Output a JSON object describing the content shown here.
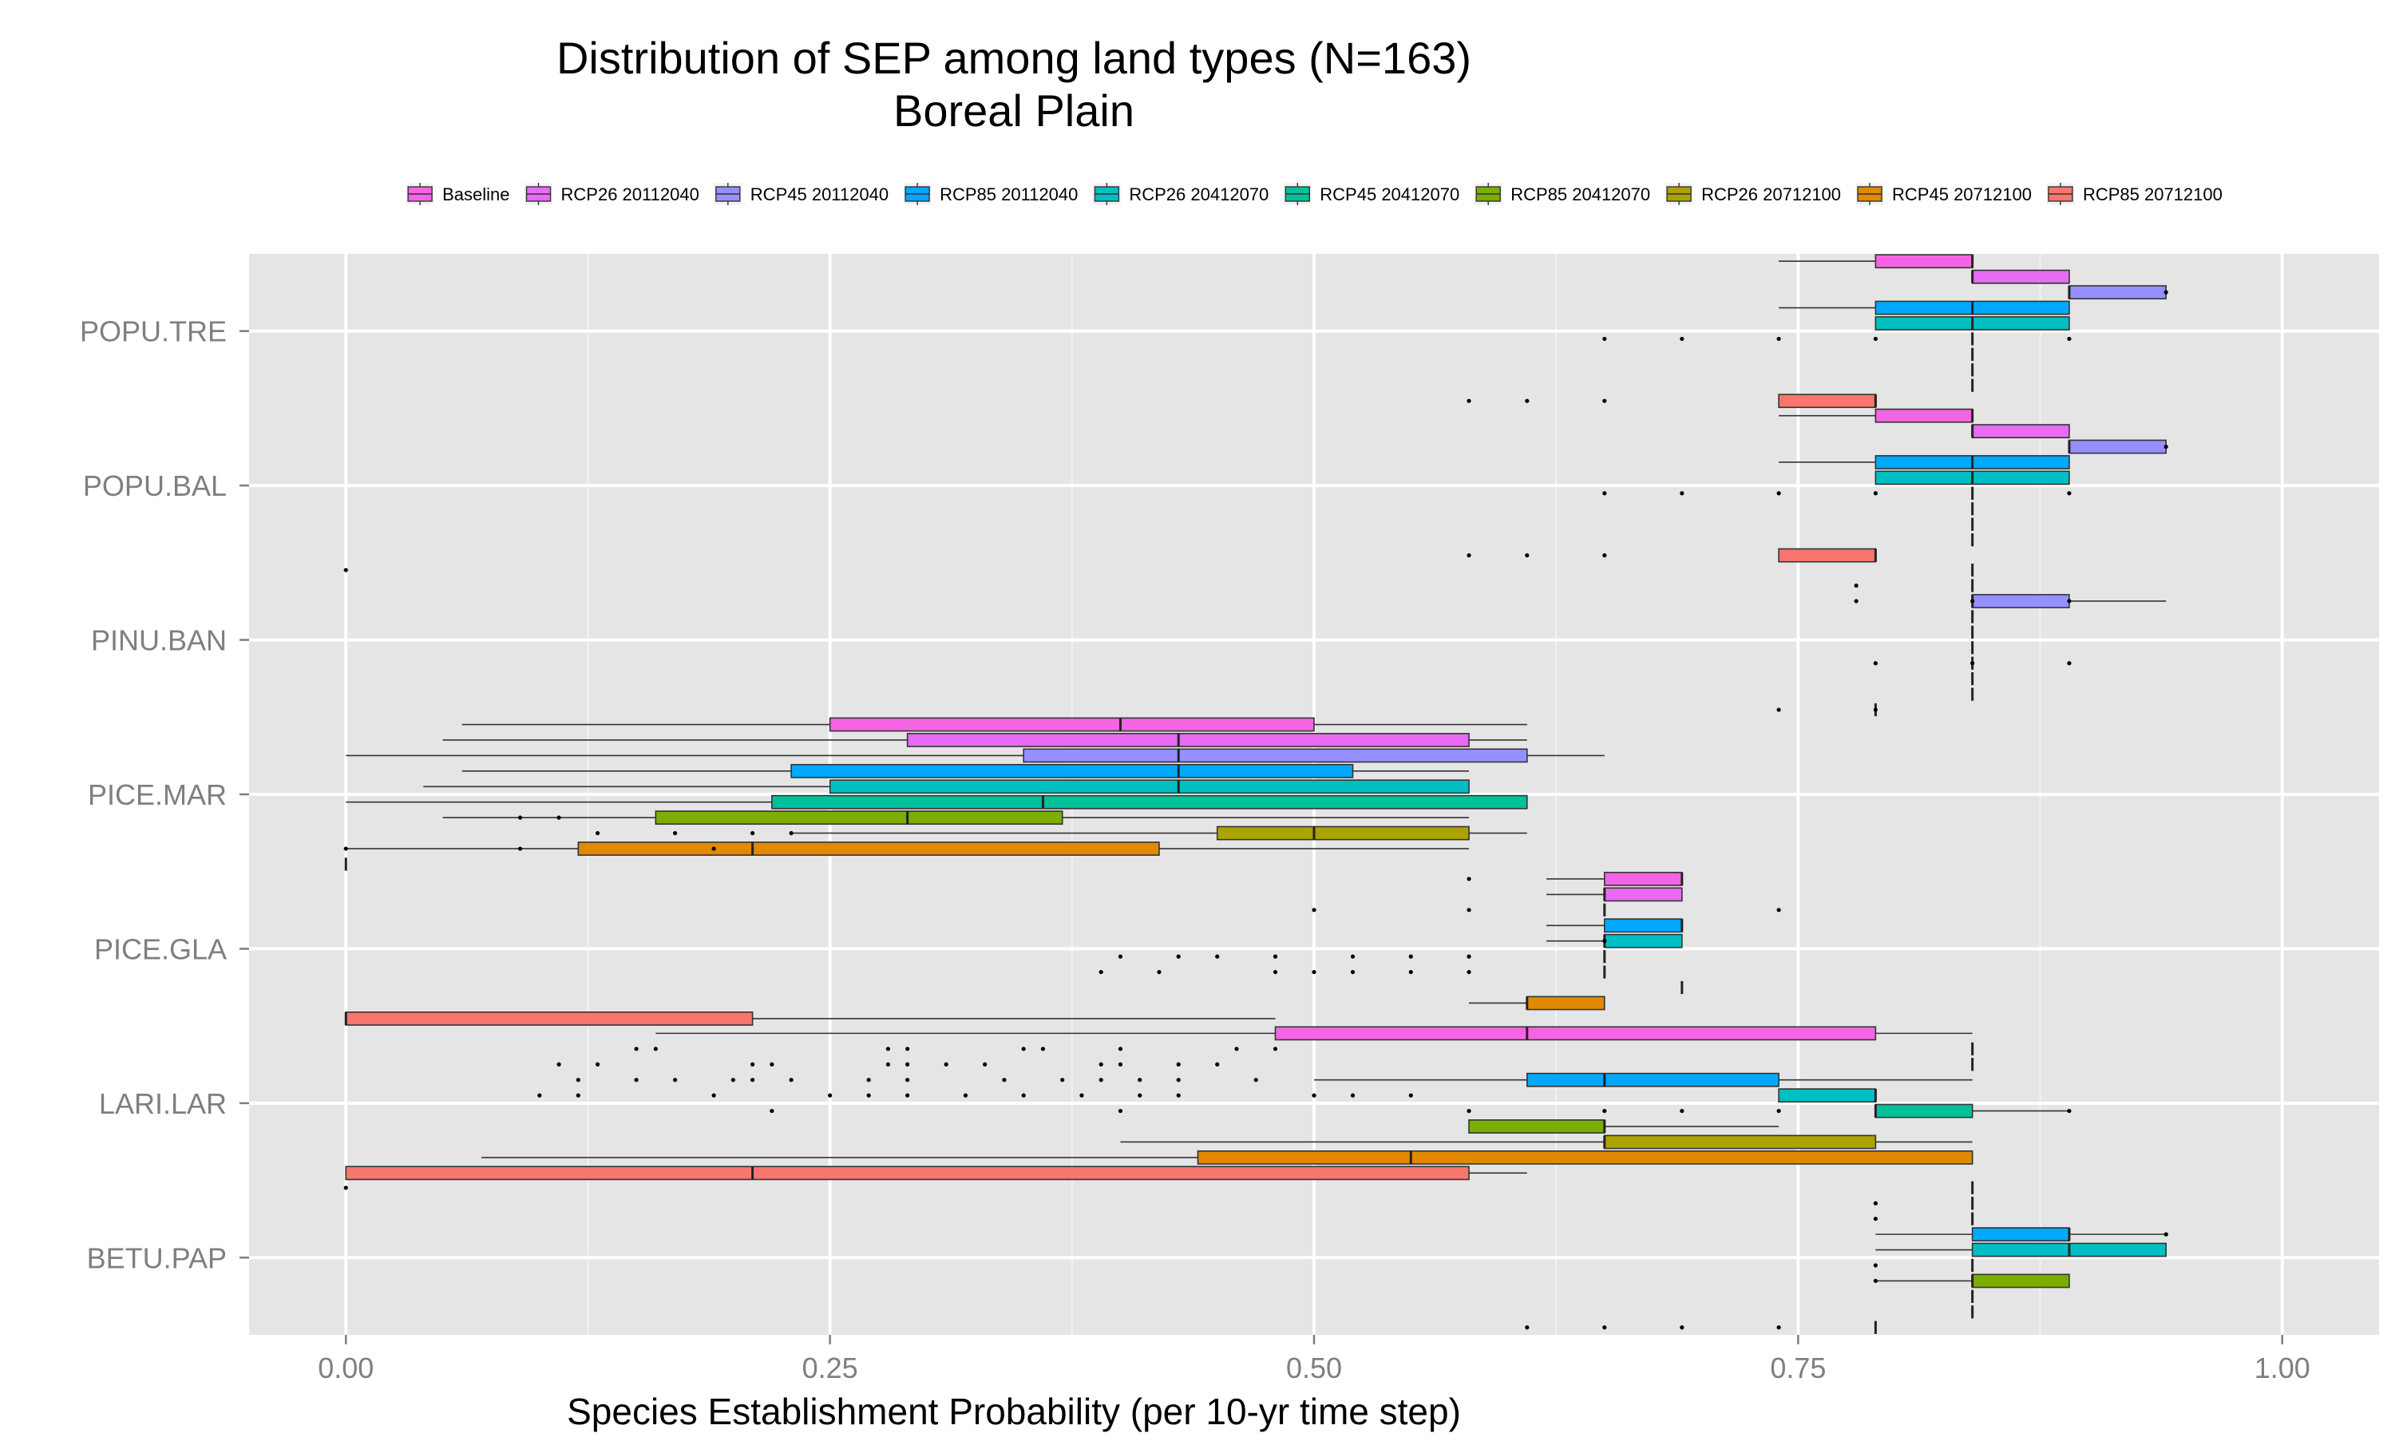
{
  "chart_data": {
    "type": "boxplot",
    "orientation": "horizontal",
    "title": "Distribution of SEP among land types (N=163)",
    "subtitle": "Boreal Plain",
    "xlabel": "Species Establishment Probability (per 10-yr time step)",
    "ylabel": "",
    "xlim": [
      -0.05,
      1.05
    ],
    "x_ticks": [
      0,
      0.25,
      0.5,
      0.75,
      1
    ],
    "x_tick_labels": [
      "0.00",
      "0.25",
      "0.50",
      "0.75",
      "1.00"
    ],
    "grid": true,
    "legend_position": "top",
    "categories": [
      "POPU.TRE",
      "POPU.BAL",
      "PINU.BAN",
      "PICE.MAR",
      "PICE.GLA",
      "LARI.LAR",
      "BETU.PAP"
    ],
    "series": [
      {
        "name": "Baseline",
        "color": "#F564E3",
        "boxes": [
          [
            0.74,
            0.79,
            0.84,
            0.84,
            0.84
          ],
          [
            0.74,
            0.79,
            0.84,
            0.84,
            0.84
          ],
          [
            0.84,
            0.84,
            0.84,
            0.84,
            0.84
          ],
          [
            0.06,
            0.25,
            0.4,
            0.5,
            0.61
          ],
          [
            0.62,
            0.65,
            0.69,
            0.69,
            0.69
          ],
          [
            0.16,
            0.48,
            0.61,
            0.79,
            0.84
          ],
          [
            0.84,
            0.84,
            0.84,
            0.84,
            0.84
          ]
        ],
        "outliers": [
          [],
          [],
          [
            0.0
          ],
          [],
          [
            0.58
          ],
          [],
          [
            0.0
          ]
        ]
      },
      {
        "name": "RCP26 20112040",
        "color": "#E76BF3",
        "boxes": [
          [
            0.84,
            0.84,
            0.84,
            0.89,
            0.89
          ],
          [
            0.84,
            0.84,
            0.84,
            0.89,
            0.89
          ],
          [
            0.84,
            0.84,
            0.84,
            0.84,
            0.84
          ],
          [
            0.05,
            0.29,
            0.43,
            0.58,
            0.61
          ],
          [
            0.62,
            0.65,
            0.65,
            0.69,
            0.69
          ],
          [
            0.84,
            0.84,
            0.84,
            0.84,
            0.84
          ],
          [
            0.84,
            0.84,
            0.84,
            0.84,
            0.84
          ]
        ],
        "outliers": [
          [],
          [],
          [
            0.78
          ],
          [],
          [],
          [],
          [
            0.79
          ]
        ]
      },
      {
        "name": "RCP45 20112040",
        "color": "#9590FF",
        "boxes": [
          [
            0.89,
            0.89,
            0.89,
            0.94,
            0.94
          ],
          [
            0.89,
            0.89,
            0.89,
            0.94,
            0.94
          ],
          [
            0.89,
            0.84,
            0.84,
            0.89,
            0.94
          ],
          [
            0.0,
            0.35,
            0.43,
            0.61,
            0.65
          ],
          [
            0.65,
            0.65,
            0.65,
            0.65,
            0.65
          ],
          [
            0.84,
            0.84,
            0.84,
            0.84,
            0.84
          ],
          [
            0.84,
            0.84,
            0.84,
            0.84,
            0.84
          ]
        ],
        "outliers": [
          [
            0.94
          ],
          [
            0.94
          ],
          [
            0.78,
            0.84,
            0.89
          ],
          [],
          [],
          [],
          [
            0.79
          ]
        ]
      },
      {
        "name": "RCP85 20112040",
        "color": "#00A9FF",
        "boxes": [
          [
            0.74,
            0.79,
            0.84,
            0.89,
            0.89
          ],
          [
            0.74,
            0.79,
            0.84,
            0.89,
            0.89
          ],
          [
            0.84,
            0.84,
            0.84,
            0.84,
            0.84
          ],
          [
            0.06,
            0.23,
            0.43,
            0.52,
            0.58
          ],
          [
            0.62,
            0.65,
            0.69,
            0.69,
            0.69
          ],
          [
            0.5,
            0.61,
            0.65,
            0.74,
            0.84
          ],
          [
            0.79,
            0.84,
            0.89,
            0.89,
            0.94
          ]
        ],
        "outliers": [
          [],
          [],
          [],
          [],
          [],
          [],
          [
            0.94
          ]
        ]
      },
      {
        "name": "RCP26 20412070",
        "color": "#00BFC4",
        "boxes": [
          [
            0.79,
            0.79,
            0.84,
            0.89,
            0.89
          ],
          [
            0.79,
            0.79,
            0.84,
            0.89,
            0.89
          ],
          [
            0.84,
            0.84,
            0.84,
            0.84,
            0.84
          ],
          [
            0.04,
            0.25,
            0.43,
            0.58,
            0.58
          ],
          [
            0.62,
            0.65,
            0.65,
            0.69,
            0.69
          ],
          [
            0.74,
            0.74,
            0.79,
            0.79,
            0.79
          ],
          [
            0.79,
            0.84,
            0.89,
            0.94,
            0.94
          ]
        ],
        "outliers": [
          [],
          [],
          [],
          [],
          [
            0.65
          ],
          [],
          []
        ]
      },
      {
        "name": "RCP45 20412070",
        "color": "#00C19A",
        "boxes": [
          [
            0.84,
            0.84,
            0.84,
            0.84,
            0.84
          ],
          [
            0.84,
            0.84,
            0.84,
            0.84,
            0.84
          ],
          [
            0.84,
            0.84,
            0.84,
            0.84,
            0.84
          ],
          [
            0.0,
            0.22,
            0.36,
            0.61,
            0.61
          ],
          [
            0.65,
            0.65,
            0.65,
            0.65,
            0.65
          ],
          [
            0.79,
            0.79,
            0.79,
            0.84,
            0.89
          ],
          [
            0.84,
            0.84,
            0.84,
            0.84,
            0.84
          ]
        ],
        "outliers": [
          [],
          [],
          [],
          [],
          [],
          [],
          [
            0.79
          ]
        ]
      },
      {
        "name": "RCP85 20412070",
        "color": "#7CAE00",
        "boxes": [
          [
            0.84,
            0.84,
            0.84,
            0.84,
            0.84
          ],
          [
            0.84,
            0.84,
            0.84,
            0.84,
            0.84
          ],
          [
            0.84,
            0.84,
            0.84,
            0.84,
            0.84
          ],
          [
            0.05,
            0.16,
            0.29,
            0.37,
            0.58
          ],
          [
            0.65,
            0.65,
            0.65,
            0.65,
            0.65
          ],
          [
            0.58,
            0.58,
            0.65,
            0.65,
            0.74
          ],
          [
            0.79,
            0.84,
            0.84,
            0.89,
            0.89
          ]
        ],
        "outliers": [
          [],
          [],
          [],
          [
            0.09,
            0.11
          ],
          [],
          [],
          [
            0.79
          ]
        ]
      },
      {
        "name": "RCP26 20712100",
        "color": "#ABA300",
        "boxes": [
          [
            0.84,
            0.84,
            0.84,
            0.84,
            0.84
          ],
          [
            0.84,
            0.84,
            0.84,
            0.84,
            0.84
          ],
          [
            0.84,
            0.84,
            0.84,
            0.84,
            0.84
          ],
          [
            0.23,
            0.45,
            0.5,
            0.58,
            0.61
          ],
          [
            0.69,
            0.69,
            0.69,
            0.69,
            0.69
          ],
          [
            0.4,
            0.65,
            0.65,
            0.79,
            0.84
          ],
          [
            0.84,
            0.84,
            0.84,
            0.84,
            0.84
          ]
        ],
        "outliers": [
          [],
          [],
          [],
          [
            0.13,
            0.17,
            0.21,
            0.23
          ],
          [],
          [],
          []
        ]
      },
      {
        "name": "RCP45 20712100",
        "color": "#E18A00",
        "boxes": [
          [
            0.84,
            0.84,
            0.84,
            0.84,
            0.84
          ],
          [
            0.84,
            0.84,
            0.84,
            0.84,
            0.84
          ],
          [
            0.84,
            0.84,
            0.84,
            0.84,
            0.84
          ],
          [
            0.0,
            0.12,
            0.21,
            0.42,
            0.58
          ],
          [
            0.58,
            0.61,
            0.61,
            0.65,
            0.65
          ],
          [
            0.07,
            0.44,
            0.55,
            0.84,
            0.84
          ],
          [
            0.84,
            0.84,
            0.84,
            0.84,
            0.84
          ]
        ],
        "outliers": [
          [],
          [],
          [],
          [
            0.0,
            0.09,
            0.19
          ],
          [],
          [],
          []
        ]
      },
      {
        "name": "RCP85 20712100",
        "color": "#F8766D",
        "boxes": [
          [
            0.74,
            0.74,
            0.79,
            0.79,
            0.79
          ],
          [
            0.74,
            0.74,
            0.79,
            0.79,
            0.79
          ],
          [
            0.79,
            0.79,
            0.79,
            0.79,
            0.79
          ],
          [
            0.0,
            0.0,
            0.0,
            0.0,
            0.0
          ],
          [
            0.0,
            0.0,
            0.0,
            0.21,
            0.48
          ],
          [
            0.0,
            0.0,
            0.21,
            0.58,
            0.61
          ],
          [
            0.79,
            0.79,
            0.79,
            0.79,
            0.79
          ]
        ],
        "outliers": [
          [
            0.58,
            0.61,
            0.65
          ],
          [
            0.58,
            0.61,
            0.65
          ],
          [
            0.74,
            0.79
          ],
          [],
          [],
          [],
          [
            0.61,
            0.65,
            0.69,
            0.74
          ]
        ]
      }
    ],
    "scattered_points": [
      {
        "cat": 0,
        "x": [
          0.65,
          0.69,
          0.74,
          0.79,
          0.89
        ],
        "slot": 5
      },
      {
        "cat": 1,
        "x": [
          0.65,
          0.69,
          0.74,
          0.79,
          0.89
        ],
        "slot": 5
      },
      {
        "cat": 2,
        "x": [
          0.79,
          0.84,
          0.89
        ],
        "slot": 6
      },
      {
        "cat": 4,
        "x": [
          0.5,
          0.58,
          0.74
        ],
        "slot": 2
      },
      {
        "cat": 4,
        "x": [
          0.4,
          0.43,
          0.45,
          0.48,
          0.52,
          0.55,
          0.58
        ],
        "slot": 5
      },
      {
        "cat": 4,
        "x": [
          0.39,
          0.42,
          0.48,
          0.5,
          0.52,
          0.55,
          0.58
        ],
        "slot": 6
      },
      {
        "cat": 5,
        "x": [
          0.15,
          0.16,
          0.28,
          0.29,
          0.35,
          0.36,
          0.4,
          0.46,
          0.48
        ],
        "slot": 1
      },
      {
        "cat": 5,
        "x": [
          0.11,
          0.13,
          0.21,
          0.22,
          0.28,
          0.29,
          0.31,
          0.33,
          0.39,
          0.4,
          0.43,
          0.45
        ],
        "slot": 2
      },
      {
        "cat": 5,
        "x": [
          0.12,
          0.15,
          0.17,
          0.2,
          0.21,
          0.23,
          0.27,
          0.29,
          0.34,
          0.37,
          0.39,
          0.41,
          0.43,
          0.47
        ],
        "slot": 3
      },
      {
        "cat": 5,
        "x": [
          0.1,
          0.12,
          0.19,
          0.25,
          0.27,
          0.29,
          0.32,
          0.35,
          0.38,
          0.41,
          0.43,
          0.5,
          0.52,
          0.55
        ],
        "slot": 4
      },
      {
        "cat": 5,
        "x": [
          0.22,
          0.4,
          0.58,
          0.65,
          0.69,
          0.74,
          0.89
        ],
        "slot": 5
      }
    ]
  }
}
